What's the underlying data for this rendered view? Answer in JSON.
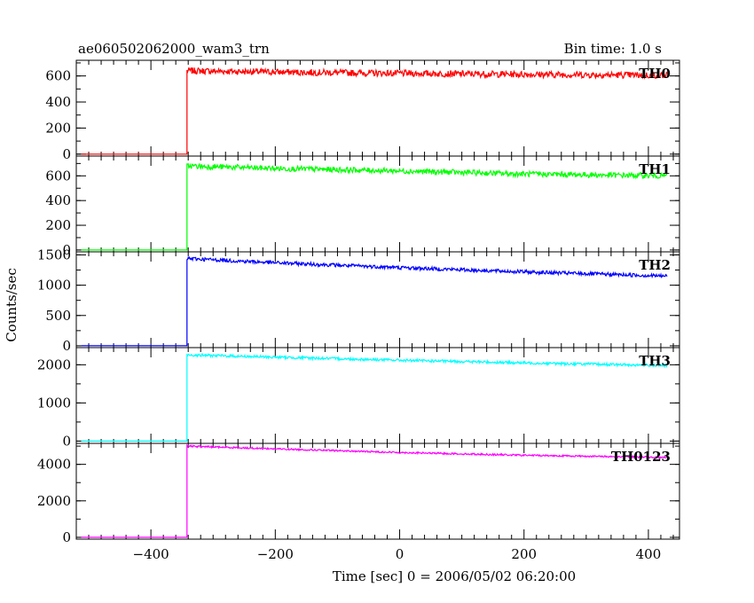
{
  "header": {
    "title": "ae060502062000_wam3_trn",
    "bin_time": "Bin time: 1.0 s"
  },
  "chart_data": {
    "type": "line",
    "title": "ae060502062000_wam3_trn",
    "subtitle": "Bin time: 1.0 s",
    "xlabel": "Time [sec] 0 = 2006/05/02 06:20:00",
    "ylabel": "Counts/sec",
    "xlim": [
      -520,
      450
    ],
    "x_ticks": [
      -400,
      -200,
      0,
      200,
      400
    ],
    "x_tick_labels": [
      "−400",
      "−200",
      "0",
      "200",
      "400"
    ],
    "onset_time": -342,
    "end_time": 430,
    "panels": [
      {
        "name": "TH0",
        "color": "#ff0000",
        "ylim": [
          -15,
          720
        ],
        "yticks": [
          0,
          200,
          400,
          600
        ],
        "ytick_labels": [
          "0",
          "200",
          "400",
          "600"
        ],
        "pre_level": 0,
        "series": [
          {
            "x": -342,
            "y": 640
          },
          {
            "x": -200,
            "y": 630
          },
          {
            "x": 0,
            "y": 620
          },
          {
            "x": 200,
            "y": 612
          },
          {
            "x": 430,
            "y": 605
          }
        ],
        "noise": 25
      },
      {
        "name": "TH1",
        "color": "#00ff00",
        "ylim": [
          -15,
          760
        ],
        "yticks": [
          0,
          200,
          400,
          600
        ],
        "ytick_labels": [
          "0",
          "200",
          "400",
          "600"
        ],
        "pre_level": 0,
        "series": [
          {
            "x": -342,
            "y": 680
          },
          {
            "x": -200,
            "y": 660
          },
          {
            "x": 0,
            "y": 640
          },
          {
            "x": 200,
            "y": 615
          },
          {
            "x": 430,
            "y": 600
          }
        ],
        "noise": 22
      },
      {
        "name": "TH2",
        "color": "#0000ff",
        "ylim": [
          -30,
          1550
        ],
        "yticks": [
          0,
          500,
          1000,
          1500
        ],
        "ytick_labels": [
          "0",
          "500",
          "1000",
          "1500"
        ],
        "pre_level": 0,
        "series": [
          {
            "x": -342,
            "y": 1440
          },
          {
            "x": -200,
            "y": 1370
          },
          {
            "x": 0,
            "y": 1290
          },
          {
            "x": 200,
            "y": 1220
          },
          {
            "x": 430,
            "y": 1150
          }
        ],
        "noise": 30
      },
      {
        "name": "TH3",
        "color": "#00ffff",
        "ylim": [
          -60,
          2450
        ],
        "yticks": [
          0,
          1000,
          2000
        ],
        "ytick_labels": [
          "0",
          "1000",
          "2000"
        ],
        "pre_level": 0,
        "series": [
          {
            "x": -342,
            "y": 2260
          },
          {
            "x": -200,
            "y": 2200
          },
          {
            "x": 0,
            "y": 2120
          },
          {
            "x": 200,
            "y": 2050
          },
          {
            "x": 430,
            "y": 1980
          }
        ],
        "noise": 35
      },
      {
        "name": "TH0123",
        "color": "#ff00ff",
        "ylim": [
          -100,
          5150
        ],
        "yticks": [
          0,
          2000,
          4000
        ],
        "ytick_labels": [
          "0",
          "2000",
          "4000"
        ],
        "pre_level": 0,
        "series": [
          {
            "x": -342,
            "y": 5000
          },
          {
            "x": -200,
            "y": 4850
          },
          {
            "x": 0,
            "y": 4650
          },
          {
            "x": 200,
            "y": 4500
          },
          {
            "x": 430,
            "y": 4380
          }
        ],
        "noise": 45
      }
    ]
  }
}
